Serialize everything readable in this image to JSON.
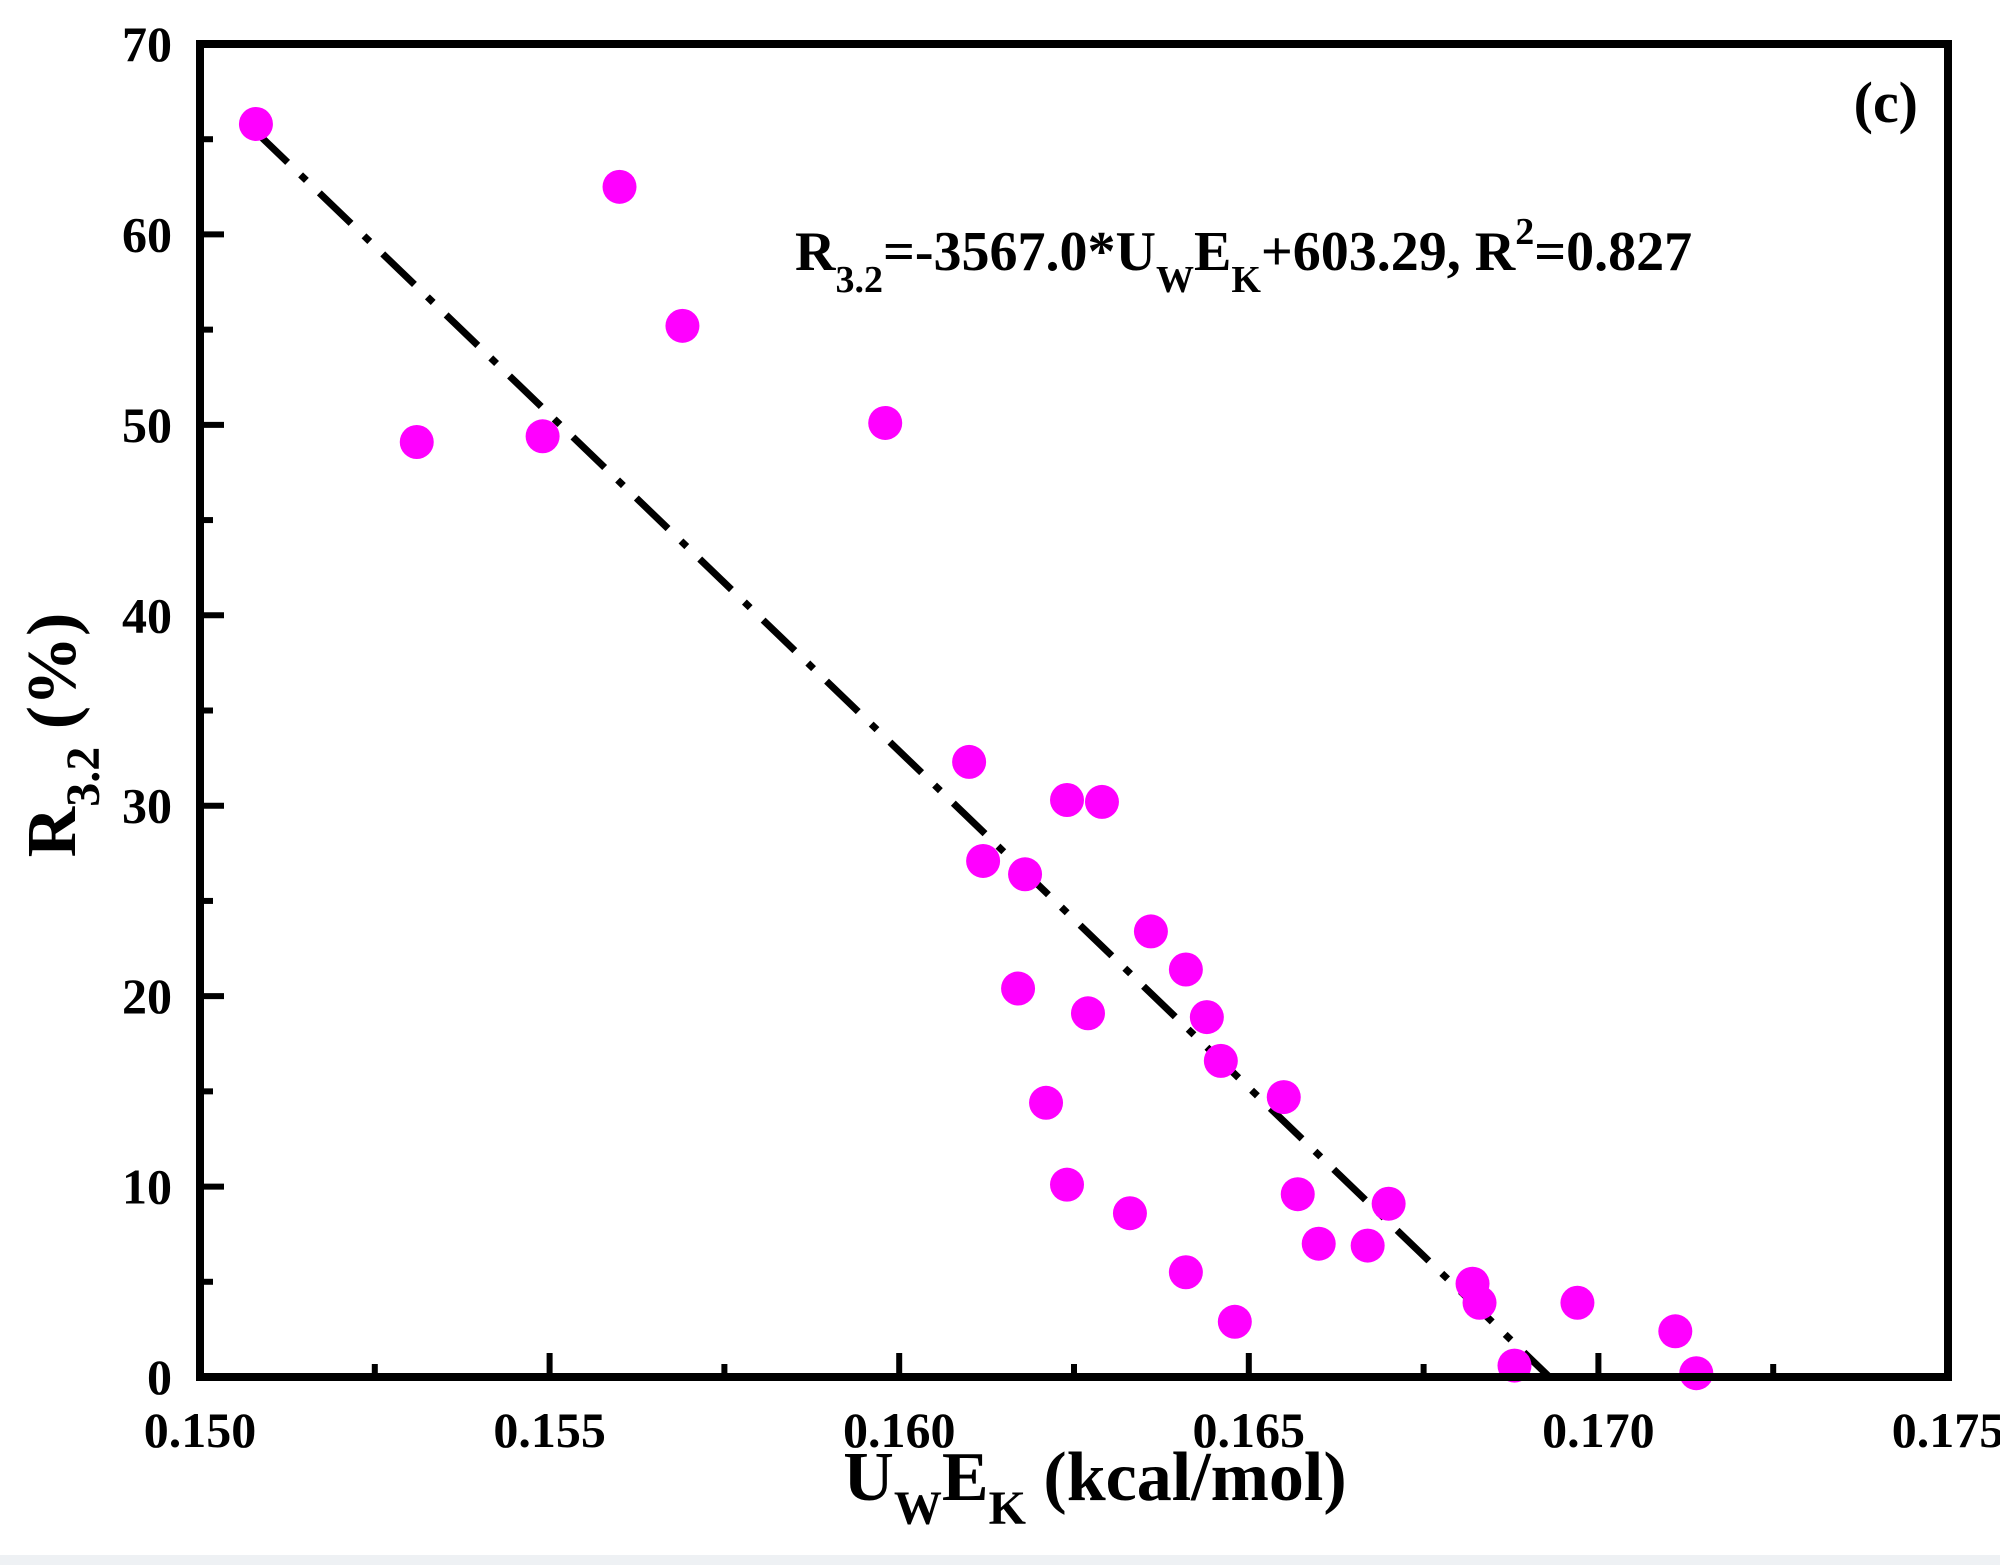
{
  "chart_data": {
    "type": "scatter",
    "title": "",
    "panel_label": "(c)",
    "xlabel": {
      "main": "U",
      "sub1": "W",
      "mid": "E",
      "sub2": "K",
      "tail": " (kcal/mol)"
    },
    "ylabel": {
      "main": "R",
      "sub": "3.2",
      "tail": " (%)"
    },
    "xlim": [
      0.15,
      0.175
    ],
    "ylim": [
      0,
      70
    ],
    "x_ticks": [
      "0.150",
      "0.155",
      "0.160",
      "0.165",
      "0.170",
      "0.175"
    ],
    "x_tick_values": [
      0.15,
      0.155,
      0.16,
      0.165,
      0.17,
      0.175
    ],
    "y_ticks": [
      "0",
      "10",
      "20",
      "30",
      "40",
      "50",
      "60",
      "70"
    ],
    "y_tick_values": [
      0,
      10,
      20,
      30,
      40,
      50,
      60,
      70
    ],
    "grid": false,
    "equation": {
      "p1": "R",
      "s1": "3.2",
      "p2": "=-3567.0*U",
      "s2": "W",
      "p3": "E",
      "s3": "K",
      "p4": "+603.29, R",
      "sup": "2",
      "p5": "=0.827"
    },
    "fit_line": {
      "slope": -3567.0,
      "intercept": 603.29,
      "x_range": [
        0.1508,
        0.1693
      ],
      "style": "dash-dot",
      "color": "#000000"
    },
    "marker_color": "#ff00ff",
    "points": [
      [
        0.1508,
        65.8
      ],
      [
        0.1531,
        49.1
      ],
      [
        0.1549,
        49.4
      ],
      [
        0.156,
        62.5
      ],
      [
        0.1569,
        55.2
      ],
      [
        0.1598,
        50.1
      ],
      [
        0.161,
        32.3
      ],
      [
        0.1612,
        27.1
      ],
      [
        0.1617,
        20.4
      ],
      [
        0.1618,
        26.4
      ],
      [
        0.1621,
        14.4
      ],
      [
        0.1624,
        10.1
      ],
      [
        0.1624,
        30.3
      ],
      [
        0.1627,
        19.1
      ],
      [
        0.1629,
        30.2
      ],
      [
        0.1633,
        8.6
      ],
      [
        0.1636,
        23.4
      ],
      [
        0.1641,
        21.4
      ],
      [
        0.1641,
        5.5
      ],
      [
        0.1644,
        18.9
      ],
      [
        0.1646,
        16.6
      ],
      [
        0.1648,
        2.9
      ],
      [
        0.1655,
        14.7
      ],
      [
        0.1657,
        9.6
      ],
      [
        0.166,
        7.0
      ],
      [
        0.1667,
        6.9
      ],
      [
        0.167,
        9.1
      ],
      [
        0.1682,
        4.9
      ],
      [
        0.1683,
        3.9
      ],
      [
        0.1688,
        0.6
      ],
      [
        0.1697,
        3.9
      ],
      [
        0.1711,
        2.4
      ],
      [
        0.1714,
        0.2
      ]
    ]
  }
}
